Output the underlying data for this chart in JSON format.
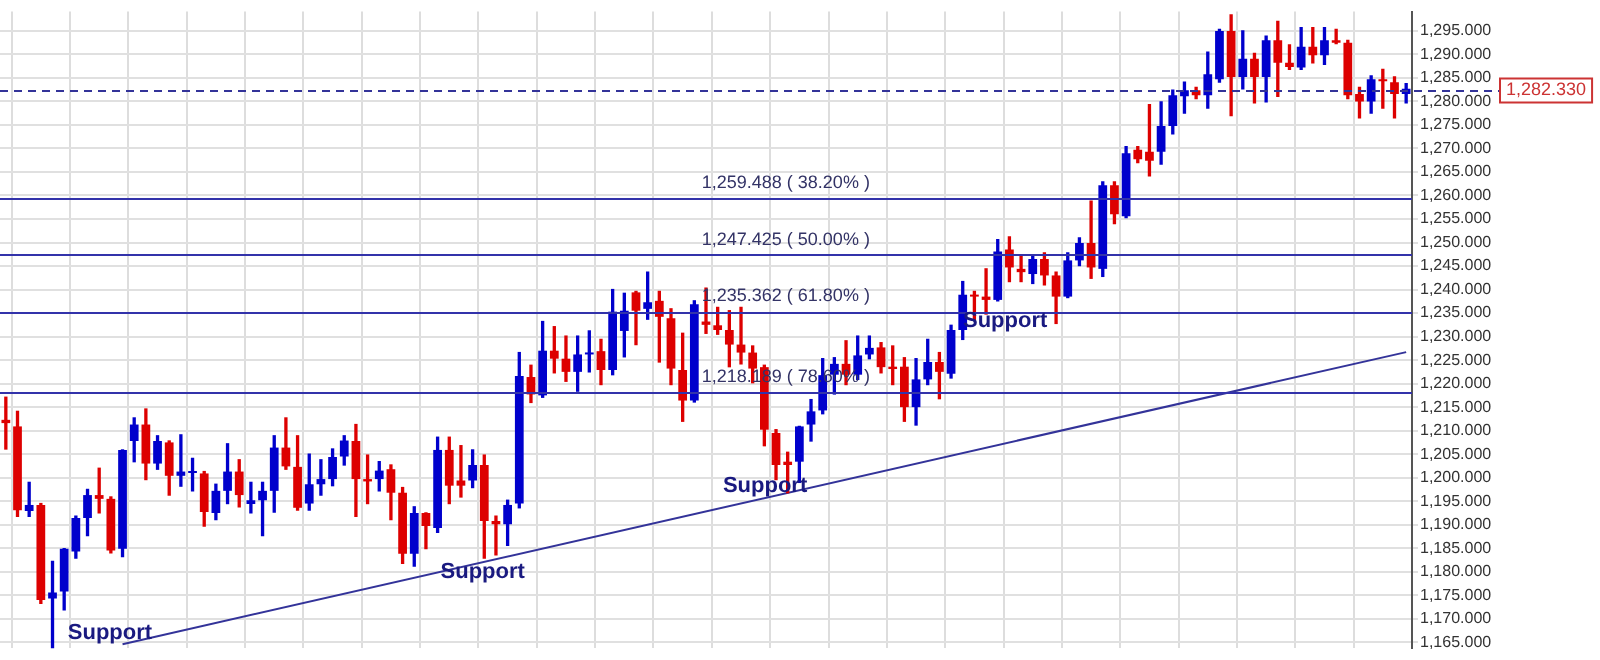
{
  "chart_data": {
    "type": "candlestick",
    "tick_labels": "y",
    "grid": true,
    "legend": false,
    "categories": [
      null,
      null,
      null,
      null,
      null,
      null,
      null,
      null,
      null,
      null,
      null,
      null,
      null,
      null,
      null,
      null,
      null,
      null,
      null,
      null,
      null,
      null,
      null,
      null,
      null,
      null,
      null,
      null,
      null,
      null,
      null,
      null,
      null,
      null,
      null,
      null,
      null,
      null,
      null,
      null,
      null,
      null,
      null,
      null,
      null,
      null,
      null,
      null,
      null,
      null,
      null,
      null,
      null,
      null,
      null,
      null,
      null,
      null,
      null,
      null,
      null,
      null,
      null,
      null,
      null,
      null,
      null,
      null,
      null,
      null,
      null,
      null,
      null,
      null,
      null,
      null,
      null,
      null,
      null,
      null,
      null,
      null,
      null,
      null,
      null,
      null,
      null,
      null,
      null,
      null,
      null,
      null,
      null,
      null,
      null,
      null,
      null,
      null,
      null,
      null,
      null,
      null,
      null,
      null,
      null,
      null,
      null,
      null,
      null,
      null,
      null,
      null,
      null,
      null,
      null,
      null,
      null,
      null,
      null,
      null,
      null
    ],
    "ohlc": [
      [
        1212.3,
        1217.1,
        1206.1,
        1211.6
      ],
      [
        1210.9,
        1214.1,
        1191.8,
        1193.1
      ],
      [
        1192.9,
        1199.0,
        1191.8,
        1194.2
      ],
      [
        1194.2,
        1194.5,
        1173.3,
        1174.0
      ],
      [
        1174.3,
        1182.2,
        1163.8,
        1175.6
      ],
      [
        1175.8,
        1184.9,
        1171.9,
        1184.9
      ],
      [
        1184.3,
        1191.8,
        1182.9,
        1191.4
      ],
      [
        1191.4,
        1197.5,
        1187.7,
        1196.3
      ],
      [
        1196.3,
        1202.0,
        1192.5,
        1195.5
      ],
      [
        1195.5,
        1195.9,
        1184.0,
        1184.5
      ],
      [
        1184.9,
        1205.9,
        1183.2,
        1205.9
      ],
      [
        1207.8,
        1212.7,
        1203.4,
        1211.3
      ],
      [
        1211.3,
        1214.6,
        1199.6,
        1203.0
      ],
      [
        1203.0,
        1208.9,
        1201.8,
        1207.8
      ],
      [
        1207.5,
        1207.8,
        1196.3,
        1200.4
      ],
      [
        1200.4,
        1209.1,
        1198.2,
        1201.3
      ],
      [
        1201.0,
        1204.1,
        1197.2,
        1201.2
      ],
      [
        1200.9,
        1201.3,
        1189.7,
        1192.7
      ],
      [
        1192.5,
        1198.6,
        1191.1,
        1197.2
      ],
      [
        1197.2,
        1207.2,
        1194.5,
        1201.3
      ],
      [
        1201.3,
        1203.8,
        1193.8,
        1196.3
      ],
      [
        1194.4,
        1199.0,
        1192.5,
        1195.2
      ],
      [
        1195.2,
        1199.0,
        1187.7,
        1197.2
      ],
      [
        1197.2,
        1208.9,
        1192.7,
        1206.4
      ],
      [
        1206.4,
        1212.7,
        1201.8,
        1202.4
      ],
      [
        1202.3,
        1208.9,
        1193.1,
        1193.6
      ],
      [
        1194.5,
        1205.0,
        1193.1,
        1198.6
      ],
      [
        1198.6,
        1203.8,
        1196.3,
        1199.7
      ],
      [
        1199.7,
        1206.1,
        1198.3,
        1204.4
      ],
      [
        1204.5,
        1208.9,
        1202.7,
        1207.9
      ],
      [
        1207.8,
        1211.3,
        1191.8,
        1199.7
      ],
      [
        1199.7,
        1204.8,
        1194.5,
        1199.2
      ],
      [
        1199.7,
        1203.4,
        1197.2,
        1201.5
      ],
      [
        1201.8,
        1202.7,
        1191.1,
        1196.8
      ],
      [
        1196.8,
        1197.9,
        1181.8,
        1183.8
      ],
      [
        1183.8,
        1193.8,
        1181.2,
        1192.5
      ],
      [
        1192.5,
        1192.5,
        1184.9,
        1189.7
      ],
      [
        1189.3,
        1208.6,
        1188.4,
        1205.9
      ],
      [
        1205.9,
        1208.6,
        1194.5,
        1198.3
      ],
      [
        1199.4,
        1206.8,
        1195.9,
        1198.3
      ],
      [
        1199.4,
        1205.9,
        1197.9,
        1202.7
      ],
      [
        1202.7,
        1204.8,
        1182.9,
        1190.8
      ],
      [
        1190.8,
        1191.8,
        1183.6,
        1190.1
      ],
      [
        1190.1,
        1195.2,
        1185.6,
        1194.2
      ],
      [
        1194.5,
        1226.6,
        1193.6,
        1221.6
      ],
      [
        1221.4,
        1223.9,
        1216.0,
        1217.7
      ],
      [
        1217.5,
        1233.2,
        1217.1,
        1227.0
      ],
      [
        1227.0,
        1232.1,
        1222.3,
        1225.3
      ],
      [
        1225.3,
        1230.1,
        1220.5,
        1222.5
      ],
      [
        1222.5,
        1230.1,
        1218.4,
        1226.2
      ],
      [
        1226.2,
        1231.2,
        1222.5,
        1226.6
      ],
      [
        1226.9,
        1229.4,
        1219.8,
        1222.9
      ],
      [
        1222.9,
        1240.0,
        1221.9,
        1235.3
      ],
      [
        1231.2,
        1239.2,
        1225.7,
        1235.5
      ],
      [
        1239.4,
        1239.6,
        1228.3,
        1235.5
      ],
      [
        1235.9,
        1243.7,
        1233.7,
        1237.3
      ],
      [
        1237.6,
        1239.6,
        1224.6,
        1234.2
      ],
      [
        1233.9,
        1235.9,
        1219.8,
        1223.2
      ],
      [
        1222.9,
        1230.7,
        1212.0,
        1216.4
      ],
      [
        1216.4,
        1237.6,
        1216.1,
        1236.9
      ],
      [
        1233.2,
        1240.3,
        1230.7,
        1232.5
      ],
      [
        1232.4,
        1236.2,
        1230.5,
        1231.4
      ],
      [
        1231.4,
        1235.5,
        1223.6,
        1228.3
      ],
      [
        1228.3,
        1236.2,
        1224.2,
        1226.6
      ],
      [
        1226.6,
        1228.0,
        1220.2,
        1223.2
      ],
      [
        1223.5,
        1223.9,
        1206.8,
        1210.2
      ],
      [
        1209.5,
        1210.2,
        1199.6,
        1202.7
      ],
      [
        1203.4,
        1205.4,
        1196.8,
        1202.7
      ],
      [
        1203.4,
        1210.9,
        1199.0,
        1210.9
      ],
      [
        1211.3,
        1216.6,
        1207.8,
        1214.1
      ],
      [
        1214.3,
        1225.3,
        1213.6,
        1221.8
      ],
      [
        1221.9,
        1225.5,
        1217.8,
        1224.2
      ],
      [
        1224.2,
        1229.1,
        1219.8,
        1221.9
      ],
      [
        1221.9,
        1230.1,
        1220.9,
        1226.0
      ],
      [
        1226.2,
        1230.1,
        1225.3,
        1227.6
      ],
      [
        1227.7,
        1228.7,
        1222.3,
        1223.5
      ],
      [
        1223.6,
        1228.0,
        1219.8,
        1223.1
      ],
      [
        1223.6,
        1225.5,
        1212.0,
        1215.0
      ],
      [
        1215.0,
        1225.3,
        1211.2,
        1220.9
      ],
      [
        1220.9,
        1229.4,
        1219.8,
        1224.6
      ],
      [
        1224.6,
        1226.6,
        1216.8,
        1222.5
      ],
      [
        1222.1,
        1232.4,
        1221.2,
        1231.4
      ],
      [
        1231.4,
        1241.7,
        1229.4,
        1238.9
      ],
      [
        1238.9,
        1239.6,
        1233.5,
        1238.5
      ],
      [
        1238.5,
        1244.4,
        1234.8,
        1237.8
      ],
      [
        1237.8,
        1250.6,
        1237.6,
        1248.1
      ],
      [
        1248.5,
        1251.2,
        1241.7,
        1244.7
      ],
      [
        1244.4,
        1247.1,
        1241.7,
        1243.7
      ],
      [
        1243.3,
        1247.1,
        1241.3,
        1246.5
      ],
      [
        1246.5,
        1247.8,
        1241.0,
        1243.0
      ],
      [
        1243.0,
        1243.7,
        1232.8,
        1238.5
      ],
      [
        1238.5,
        1247.8,
        1238.3,
        1246.2
      ],
      [
        1246.2,
        1251.0,
        1245.1,
        1249.9
      ],
      [
        1249.9,
        1258.8,
        1242.4,
        1244.7
      ],
      [
        1244.4,
        1262.9,
        1242.8,
        1262.2
      ],
      [
        1262.2,
        1262.9,
        1254.0,
        1256.0
      ],
      [
        1255.6,
        1270.4,
        1255.3,
        1269.0
      ],
      [
        1269.7,
        1270.4,
        1267.0,
        1267.7
      ],
      [
        1269.3,
        1279.3,
        1264.2,
        1267.4
      ],
      [
        1269.3,
        1279.9,
        1266.7,
        1274.8
      ],
      [
        1274.8,
        1282.4,
        1273.1,
        1281.3
      ],
      [
        1281.1,
        1284.1,
        1277.5,
        1282.4
      ],
      [
        1282.4,
        1283.0,
        1280.6,
        1281.3
      ],
      [
        1281.3,
        1290.5,
        1278.6,
        1285.8
      ],
      [
        1284.7,
        1295.3,
        1284.1,
        1295.0
      ],
      [
        1295.0,
        1298.4,
        1277.0,
        1285.2
      ],
      [
        1285.2,
        1295.0,
        1282.7,
        1289.1
      ],
      [
        1289.1,
        1290.2,
        1279.7,
        1285.2
      ],
      [
        1285.2,
        1293.9,
        1279.9,
        1293.0
      ],
      [
        1293.0,
        1297.0,
        1281.1,
        1288.2
      ],
      [
        1288.2,
        1292.0,
        1286.8,
        1287.3
      ],
      [
        1287.2,
        1295.7,
        1286.8,
        1291.6
      ],
      [
        1291.6,
        1295.7,
        1288.2,
        1289.8
      ],
      [
        1289.8,
        1295.7,
        1287.9,
        1293.0
      ],
      [
        1293.0,
        1295.3,
        1292.3,
        1292.5
      ],
      [
        1292.5,
        1293.0,
        1280.6,
        1281.3
      ],
      [
        1281.6,
        1283.0,
        1276.5,
        1280.0
      ],
      [
        1280.0,
        1285.4,
        1277.5,
        1284.7
      ],
      [
        1284.7,
        1286.8,
        1278.6,
        1284.3
      ],
      [
        1284.1,
        1285.2,
        1276.5,
        1281.6
      ],
      [
        1281.6,
        1283.8,
        1279.7,
        1282.7
      ]
    ],
    "colors": [
      "#dd0000",
      "#dd0000",
      "#0000cc",
      "#dd0000",
      "#0000cc",
      "#0000cc",
      "#0000cc",
      "#0000cc",
      "#dd0000",
      "#dd0000",
      "#0000cc",
      "#0000cc",
      "#dd0000",
      "#0000cc",
      "#dd0000",
      "#0000cc",
      "#0000cc",
      "#dd0000",
      "#0000cc",
      "#0000cc",
      "#dd0000",
      "#0000cc",
      "#0000cc",
      "#0000cc",
      "#dd0000",
      "#dd0000",
      "#0000cc",
      "#0000cc",
      "#0000cc",
      "#0000cc",
      "#dd0000",
      "#dd0000",
      "#0000cc",
      "#dd0000",
      "#dd0000",
      "#0000cc",
      "#dd0000",
      "#0000cc",
      "#dd0000",
      "#dd0000",
      "#0000cc",
      "#dd0000",
      "#dd0000",
      "#0000cc",
      "#0000cc",
      "#dd0000",
      "#0000cc",
      "#dd0000",
      "#dd0000",
      "#0000cc",
      "#0000cc",
      "#dd0000",
      "#0000cc",
      "#0000cc",
      "#dd0000",
      "#0000cc",
      "#dd0000",
      "#dd0000",
      "#dd0000",
      "#0000cc",
      "#dd0000",
      "#dd0000",
      "#dd0000",
      "#dd0000",
      "#dd0000",
      "#dd0000",
      "#dd0000",
      "#dd0000",
      "#0000cc",
      "#0000cc",
      "#0000cc",
      "#0000cc",
      "#dd0000",
      "#0000cc",
      "#0000cc",
      "#dd0000",
      "#dd0000",
      "#dd0000",
      "#0000cc",
      "#0000cc",
      "#dd0000",
      "#0000cc",
      "#0000cc",
      "#dd0000",
      "#dd0000",
      "#0000cc",
      "#dd0000",
      "#dd0000",
      "#0000cc",
      "#dd0000",
      "#dd0000",
      "#0000cc",
      "#0000cc",
      "#dd0000",
      "#0000cc",
      "#dd0000",
      "#0000cc",
      "#dd0000",
      "#dd0000",
      "#0000cc",
      "#0000cc",
      "#0000cc",
      "#dd0000",
      "#0000cc",
      "#0000cc",
      "#dd0000",
      "#0000cc",
      "#dd0000",
      "#0000cc",
      "#dd0000",
      "#dd0000",
      "#0000cc",
      "#dd0000",
      "#0000cc",
      "#dd0000",
      "#dd0000",
      "#dd0000",
      "#0000cc",
      "#dd0000",
      "#dd0000",
      "#0000cc"
    ],
    "series": [
      {
        "type": "line",
        "color": "#333399",
        "values": [
          null,
          null,
          null,
          null,
          null,
          null,
          null,
          null,
          null,
          null,
          1164.6,
          null,
          null,
          null,
          null,
          null,
          null,
          null,
          null,
          null,
          null,
          null,
          null,
          null,
          null,
          null,
          null,
          null,
          null,
          null,
          null,
          null,
          null,
          null,
          null,
          null,
          null,
          null,
          null,
          null,
          null,
          null,
          null,
          null,
          null,
          null,
          null,
          null,
          null,
          null,
          null,
          null,
          null,
          null,
          null,
          null,
          null,
          null,
          null,
          null,
          null,
          null,
          null,
          null,
          null,
          null,
          null,
          null,
          null,
          null,
          null,
          null,
          null,
          null,
          null,
          null,
          null,
          null,
          null,
          null,
          null,
          null,
          null,
          null,
          null,
          null,
          null,
          null,
          null,
          null,
          null,
          null,
          null,
          null,
          null,
          null,
          null,
          null,
          null,
          null,
          null,
          null,
          null,
          null,
          null,
          null,
          null,
          null,
          null,
          null,
          null,
          null,
          null,
          null,
          null,
          null,
          null,
          null,
          null,
          null,
          1226.7
        ]
      }
    ],
    "ylim": [
      1163.7,
      1299.1
    ],
    "yticks": [
      {
        "value": 1165,
        "label": "1,165.000"
      },
      {
        "value": 1170,
        "label": "1,170.000"
      },
      {
        "value": 1175,
        "label": "1,175.000"
      },
      {
        "value": 1180,
        "label": "1,180.000"
      },
      {
        "value": 1185,
        "label": "1,185.000"
      },
      {
        "value": 1190,
        "label": "1,190.000"
      },
      {
        "value": 1195,
        "label": "1,195.000"
      },
      {
        "value": 1200,
        "label": "1,200.000"
      },
      {
        "value": 1205,
        "label": "1,205.000"
      },
      {
        "value": 1210,
        "label": "1,210.000"
      },
      {
        "value": 1215,
        "label": "1,215.000"
      },
      {
        "value": 1220,
        "label": "1,220.000"
      },
      {
        "value": 1225,
        "label": "1,225.000"
      },
      {
        "value": 1230,
        "label": "1,230.000"
      },
      {
        "value": 1235,
        "label": "1,235.000"
      },
      {
        "value": 1240,
        "label": "1,240.000"
      },
      {
        "value": 1245,
        "label": "1,245.000"
      },
      {
        "value": 1250,
        "label": "1,250.000"
      },
      {
        "value": 1255,
        "label": "1,255.000"
      },
      {
        "value": 1260,
        "label": "1,260.000"
      },
      {
        "value": 1265,
        "label": "1,265.000"
      },
      {
        "value": 1270,
        "label": "1,270.000"
      },
      {
        "value": 1275,
        "label": "1,275.000"
      },
      {
        "value": 1280,
        "label": "1,280.000"
      },
      {
        "value": 1285,
        "label": "1,285.000"
      },
      {
        "value": 1290,
        "label": "1,290.000"
      },
      {
        "value": 1295,
        "label": "1,295.000"
      }
    ],
    "ref_lines": [
      {
        "axis": "y",
        "value": 1282.33,
        "label": "1,282.330",
        "color": "#333399",
        "line_style": "dashed"
      },
      {
        "axis": "y",
        "value": 1259.488,
        "label": "1,259.488 ( 38.20% )",
        "color": "#3333aa"
      },
      {
        "axis": "y",
        "value": 1247.425,
        "label": "1,247.425 ( 50.00% )",
        "color": "#3333aa"
      },
      {
        "axis": "y",
        "value": 1235.362,
        "label": "1,235.362 ( 61.80% )",
        "color": "#3333aa"
      },
      {
        "axis": "y",
        "value": 1218.189,
        "label": "1,218.189 ( 78.60% )",
        "color": "#3333aa"
      }
    ],
    "annotations": [
      "Support",
      "Support",
      "Support",
      "Support"
    ]
  }
}
